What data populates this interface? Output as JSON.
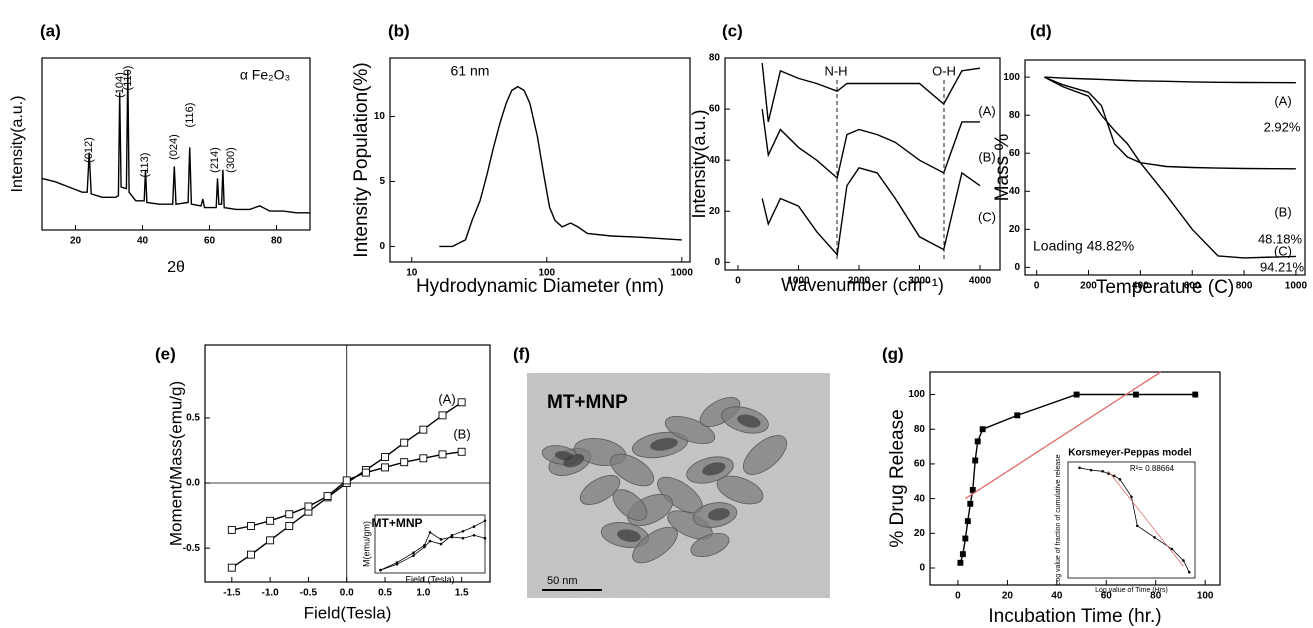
{
  "chart_data": [
    {
      "type": "line",
      "panel_label": "(a)",
      "x_label": "2θ",
      "y_label": "Intensity(a.u.)",
      "xlim": [
        10,
        90
      ],
      "ylim": [
        0,
        100
      ],
      "xticks": [
        20,
        40,
        60,
        80
      ],
      "annotations": [
        "α Fe₂O₃",
        "(012)",
        "(104)",
        "(110)",
        "(113)",
        "(024)",
        "(116)",
        "(214)",
        "(300)"
      ],
      "x": [
        10,
        14,
        18,
        22,
        23.5,
        24.1,
        24.7,
        28,
        32,
        32.8,
        33.2,
        33.6,
        35.2,
        35.6,
        36,
        38,
        40.5,
        40.9,
        41.3,
        45,
        49,
        49.5,
        50,
        53.6,
        54.1,
        54.6,
        57.5,
        58,
        58.5,
        62,
        62.4,
        62.8,
        63.6,
        64,
        64.4,
        68,
        72,
        75,
        78,
        82,
        86,
        90
      ],
      "series": [
        {
          "color": "#000000",
          "values": [
            30,
            28,
            25,
            22,
            22,
            45,
            21,
            19,
            19,
            20,
            80,
            25,
            24,
            93,
            22,
            17,
            17,
            35,
            16,
            15,
            15,
            37,
            15,
            16,
            48,
            15,
            14,
            18,
            13,
            13,
            30,
            15,
            15,
            35,
            13,
            12,
            12,
            14,
            11,
            11,
            10,
            10
          ]
        }
      ]
    },
    {
      "type": "line",
      "panel_label": "(b)",
      "x_label": "Hydrodynamic Diameter (nm)",
      "y_label": "Intensity Population(%)",
      "xlog": true,
      "xlim": [
        6.9,
        1150
      ],
      "ylim": [
        -1.2,
        14.5
      ],
      "xticks": [
        10,
        100,
        1000
      ],
      "yticks": [
        0,
        5,
        10
      ],
      "annotations": [
        "61 nm"
      ],
      "x": [
        16,
        20,
        25,
        28,
        32,
        36,
        40,
        45,
        50,
        55,
        61,
        68,
        75,
        85,
        95,
        105,
        115,
        130,
        150,
        170,
        200,
        300,
        500,
        1000
      ],
      "series": [
        {
          "color": "#000000",
          "values": [
            0,
            0,
            0.5,
            2,
            3.5,
            5.5,
            7.5,
            9.5,
            11,
            12,
            12.3,
            12,
            11,
            8.5,
            5.5,
            3,
            2,
            1.5,
            1.8,
            1.5,
            1,
            0.8,
            0.7,
            0.5
          ]
        }
      ]
    },
    {
      "type": "line",
      "panel_label": "(c)",
      "x_label": "Wavenumber (cm⁻¹)",
      "y_label": "Intensity(a.u.)",
      "xlim": [
        -215,
        4330
      ],
      "ylim": [
        -3,
        80
      ],
      "xticks": [
        0,
        1000,
        2000,
        3000,
        4000
      ],
      "yticks": [
        0,
        20,
        40,
        60,
        80
      ],
      "annotations": [
        "N-H",
        "O-H"
      ],
      "x": [
        400,
        500,
        700,
        1000,
        1300,
        1640,
        1800,
        2000,
        2300,
        2600,
        3000,
        3400,
        3700,
        4000
      ],
      "series": [
        {
          "name": "(A)",
          "color": "#000000",
          "values": [
            78,
            55,
            75,
            72,
            70,
            67,
            70,
            70,
            70,
            70,
            70,
            62,
            75,
            76
          ]
        },
        {
          "name": "(B)",
          "color": "#000000",
          "values": [
            60,
            42,
            52,
            45,
            40,
            33,
            50,
            52,
            50,
            47,
            40,
            35,
            55,
            55
          ]
        },
        {
          "name": "(C)",
          "color": "#000000",
          "values": [
            25,
            15,
            25,
            22,
            12,
            3,
            30,
            37,
            35,
            25,
            10,
            5,
            35,
            30
          ]
        }
      ]
    },
    {
      "type": "line",
      "panel_label": "(d)",
      "x_label": "Temperature (C)",
      "y_label": "Mass %",
      "xlim": [
        -45,
        1035
      ],
      "ylim": [
        -4,
        109
      ],
      "xticks": [
        0,
        200,
        400,
        600,
        800,
        1000
      ],
      "yticks": [
        0,
        20,
        40,
        60,
        80,
        100
      ],
      "annotations": [
        "2.92%",
        "48.18%",
        "94.21%",
        "Loading 48.82%"
      ],
      "x": [
        30,
        100,
        200,
        250,
        300,
        350,
        400,
        500,
        600,
        700,
        800,
        1000
      ],
      "series": [
        {
          "name": "(A)",
          "color": "#000000",
          "values": [
            100,
            99.5,
            99,
            98.8,
            98.5,
            98.2,
            98,
            97.8,
            97.5,
            97.3,
            97.2,
            97.08
          ]
        },
        {
          "name": "(B)",
          "color": "#000000",
          "values": [
            100,
            96,
            92,
            85,
            65,
            58,
            55,
            53,
            52.5,
            52.2,
            52,
            51.82
          ]
        },
        {
          "name": "(C)",
          "color": "#000000",
          "values": [
            100,
            95,
            90,
            80,
            72,
            65,
            55,
            38,
            20,
            6,
            5,
            5.79
          ]
        }
      ]
    },
    {
      "type": "line",
      "panel_label": "(e)",
      "x_label": "Field(Tesla)",
      "y_label": "Moment/Mass(emu/g)",
      "marker": "open-square",
      "xlim": [
        -1.85,
        1.87
      ],
      "ylim": [
        -0.76,
        1.06
      ],
      "xticks": [
        -1.5,
        {
          "value": -1,
          "label": "-1.0"
        },
        -0.5,
        {
          "value": 0,
          "label": "0.0"
        },
        0.5,
        {
          "value": 1,
          "label": "1.0"
        },
        1.5
      ],
      "yticks": [
        -0.5,
        {
          "value": 0,
          "label": "0.0"
        },
        0.5
      ],
      "x": [
        -1.5,
        -1.25,
        -1,
        -0.75,
        -0.5,
        -0.25,
        0,
        0.25,
        0.5,
        0.75,
        1,
        1.25,
        1.5
      ],
      "series": [
        {
          "name": "(A)",
          "color": "#000000",
          "values": [
            -0.65,
            -0.55,
            -0.44,
            -0.33,
            -0.22,
            -0.11,
            0,
            0.1,
            0.2,
            0.31,
            0.41,
            0.52,
            0.62
          ]
        },
        {
          "name": "(B)",
          "color": "#000000",
          "values": [
            -0.36,
            -0.33,
            -0.29,
            -0.24,
            -0.18,
            -0.1,
            0.02,
            0.08,
            0.12,
            0.16,
            0.19,
            0.22,
            0.24
          ]
        }
      ],
      "inset": {
        "title": "MT+MNP",
        "x_label": "Field (Tesla)",
        "y_label": "M(emu/gm)",
        "xlim": [
          0,
          100
        ],
        "ylim": [
          0,
          100
        ],
        "x": [
          5,
          20,
          35,
          45,
          50,
          60,
          70,
          80,
          90,
          100
        ],
        "series": [
          {
            "color": "#000000",
            "values": [
              5,
              15,
              30,
              45,
              55,
              50,
              65,
              72,
              80,
              90
            ]
          },
          {
            "color": "#000000",
            "values": [
              5,
              18,
              35,
              48,
              70,
              58,
              62,
              60,
              65,
              60
            ]
          }
        ]
      }
    },
    {
      "type": "image",
      "panel_label": "(f)",
      "label": "MT+MNP",
      "scale_bar": "50 nm"
    },
    {
      "type": "line",
      "panel_label": "(g)",
      "x_label": "Incubation Time (hr.)",
      "y_label": "% Drug Release",
      "marker": "square",
      "xlim": [
        -11.3,
        106
      ],
      "ylim": [
        -9.8,
        113
      ],
      "xticks": [
        0,
        20,
        40,
        60,
        80,
        100
      ],
      "yticks": [
        0,
        20,
        40,
        60,
        80,
        100
      ],
      "x": [
        1,
        2,
        3,
        4,
        5,
        6,
        7,
        8,
        10,
        24,
        48,
        72,
        96
      ],
      "series": [
        {
          "color": "#000000",
          "values": [
            3,
            8,
            17,
            27,
            37,
            45,
            62,
            73,
            80,
            88,
            100,
            100,
            100
          ]
        },
        {
          "color": "#e07070",
          "x": [
            3,
            82
          ],
          "values": [
            40,
            113
          ],
          "marker": "none"
        }
      ],
      "inset": {
        "title": "Korsmeyer-Peppas model",
        "x_label": "Log value of Time (Hrs)",
        "y_label": "Log value of fraction of cumulative release",
        "annotations": [
          "R²= 0.88664"
        ],
        "xlim": [
          -0.1,
          2.1
        ],
        "ylim": [
          0,
          1
        ],
        "x": [
          0.1,
          0.3,
          0.5,
          0.6,
          0.7,
          0.8,
          1.0,
          1.1,
          1.4,
          1.7,
          1.9,
          2.0
        ],
        "series": [
          {
            "color": "#000000",
            "values": [
              0.95,
              0.93,
              0.92,
              0.9,
              0.88,
              0.85,
              0.7,
              0.45,
              0.35,
              0.25,
              0.15,
              0.05
            ]
          },
          {
            "color": "#e07070",
            "x": [
              0.6,
              1.9
            ],
            "values": [
              0.92,
              0.1
            ]
          }
        ]
      }
    }
  ]
}
